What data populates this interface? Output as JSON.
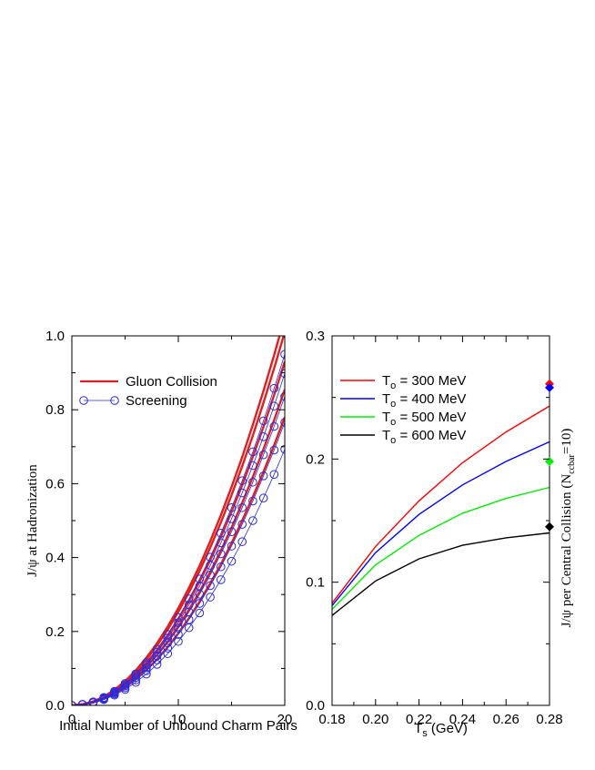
{
  "chart_data": [
    {
      "type": "line",
      "xlabel": "Initial Number of Unbound Charm Pairs",
      "ylabel": "J/ψ at Hadronization",
      "xlim": [
        0,
        20
      ],
      "ylim": [
        0,
        1.0
      ],
      "xticks": [
        0,
        10,
        20
      ],
      "xtick_labels": [
        "0",
        "10",
        "20"
      ],
      "yticks": [
        0,
        0.2,
        0.4,
        0.6,
        0.8,
        1.0
      ],
      "ytick_labels": [
        "0.0",
        "0.2",
        "0.4",
        "0.6",
        "0.8",
        "1.0"
      ],
      "legend_position": "top-left",
      "legend": [
        {
          "name": "Gluon Collision",
          "color": "#e02020",
          "marker": "none"
        },
        {
          "name": "Screening",
          "color": "#2a2ae0",
          "marker": "circle"
        }
      ],
      "x": [
        0,
        1,
        2,
        3,
        4,
        5,
        6,
        7,
        8,
        9,
        10,
        11,
        12,
        13,
        14,
        15,
        16,
        17,
        18,
        19,
        20
      ],
      "series": [
        {
          "name": "Gluon Collision",
          "color": "#e02020",
          "values": [
            0,
            0.003,
            0.0106,
            0.0237,
            0.042,
            0.0657,
            0.0946,
            0.129,
            0.168,
            0.213,
            0.263,
            0.318,
            0.378,
            0.444,
            0.515,
            0.591,
            0.672,
            0.759,
            0.851,
            0.948,
            1.05
          ]
        },
        {
          "name": "Gluon Collision",
          "color": "#e02020",
          "values": [
            0,
            0.0029,
            0.0102,
            0.0227,
            0.0405,
            0.0632,
            0.0911,
            0.124,
            0.162,
            0.205,
            0.253,
            0.306,
            0.364,
            0.427,
            0.495,
            0.569,
            0.647,
            0.73,
            0.819,
            0.912,
            1.01
          ]
        },
        {
          "name": "Gluon Collision",
          "color": "#e02020",
          "values": [
            0,
            0.0026,
            0.0093,
            0.021,
            0.0373,
            0.0582,
            0.0839,
            0.114,
            0.149,
            0.189,
            0.233,
            0.282,
            0.335,
            0.393,
            0.456,
            0.524,
            0.596,
            0.673,
            0.754,
            0.84,
            0.93
          ]
        },
        {
          "name": "Gluon Collision",
          "color": "#e02020",
          "values": [
            0,
            0.0024,
            0.0086,
            0.0193,
            0.0343,
            0.0535,
            0.0771,
            0.105,
            0.137,
            0.173,
            0.214,
            0.259,
            0.308,
            0.361,
            0.419,
            0.481,
            0.548,
            0.618,
            0.693,
            0.772,
            0.855
          ]
        },
        {
          "name": "Gluon Collision",
          "color": "#e02020",
          "values": [
            0,
            0.0022,
            0.0078,
            0.0176,
            0.0313,
            0.0488,
            0.0703,
            0.0957,
            0.125,
            0.158,
            0.195,
            0.236,
            0.281,
            0.33,
            0.382,
            0.439,
            0.5,
            0.564,
            0.632,
            0.704,
            0.78
          ]
        },
        {
          "name": "Screening",
          "color": "#2a2ae0",
          "values": [
            0,
            0.0027,
            0.0095,
            0.0214,
            0.038,
            0.0594,
            0.0855,
            0.116,
            0.152,
            0.192,
            0.238,
            0.288,
            0.342,
            0.401,
            0.466,
            0.535,
            0.608,
            0.686,
            0.77,
            0.858,
            0.95
          ]
        },
        {
          "name": "Screening",
          "color": "#2a2ae0",
          "values": [
            0,
            0.0025,
            0.009,
            0.0202,
            0.0359,
            0.0561,
            0.0808,
            0.11,
            0.144,
            0.182,
            0.224,
            0.272,
            0.323,
            0.379,
            0.44,
            0.505,
            0.575,
            0.649,
            0.727,
            0.81,
            0.898
          ]
        },
        {
          "name": "Screening",
          "color": "#2a2ae0",
          "values": [
            0,
            0.0023,
            0.0084,
            0.0188,
            0.0335,
            0.0523,
            0.0753,
            0.102,
            0.134,
            0.169,
            0.209,
            0.253,
            0.301,
            0.353,
            0.41,
            0.47,
            0.535,
            0.604,
            0.678,
            0.755,
            0.836
          ]
        },
        {
          "name": "Screening",
          "color": "#2a2ae0",
          "values": [
            0,
            0.0021,
            0.0077,
            0.0172,
            0.0306,
            0.0479,
            0.0689,
            0.0938,
            0.123,
            0.155,
            0.192,
            0.232,
            0.276,
            0.324,
            0.375,
            0.431,
            0.49,
            0.553,
            0.621,
            0.691,
            0.766
          ]
        },
        {
          "name": "Screening",
          "color": "#2a2ae0",
          "values": [
            0,
            0.0019,
            0.0069,
            0.0156,
            0.0277,
            0.0433,
            0.0623,
            0.0848,
            0.111,
            0.14,
            0.173,
            0.21,
            0.25,
            0.293,
            0.34,
            0.39,
            0.443,
            0.5,
            0.561,
            0.625,
            0.693
          ]
        }
      ]
    },
    {
      "type": "line",
      "xlabel_main": "T",
      "xlabel_sub": "s",
      "xlabel_rest": " (GeV)",
      "ylabel": "J/ψ per Central Collision (N",
      "ylabel_sub": "ccbar",
      "ylabel_rest": "=10)",
      "xlim": [
        0.18,
        0.28
      ],
      "ylim": [
        0,
        0.3
      ],
      "xticks": [
        0.18,
        0.2,
        0.22,
        0.24,
        0.26,
        0.28
      ],
      "xtick_labels": [
        "0.18",
        "0.20",
        "0.22",
        "0.24",
        "0.26",
        "0.28"
      ],
      "yticks": [
        0,
        0.1,
        0.2,
        0.3
      ],
      "ytick_labels": [
        "0.0",
        "0.1",
        "0.2",
        "0.3"
      ],
      "legend_position": "top-left",
      "x": [
        0.18,
        0.2,
        0.22,
        0.24,
        0.26,
        0.28
      ],
      "series": [
        {
          "name": "T",
          "sub": "o",
          "rest": " = 300 MeV",
          "color": "#ff0000",
          "values": [
            0.083,
            0.129,
            0.166,
            0.197,
            0.222,
            0.243
          ]
        },
        {
          "name": "T",
          "sub": "o",
          "rest": " = 400 MeV",
          "color": "#0000ff",
          "values": [
            0.081,
            0.124,
            0.155,
            0.179,
            0.198,
            0.214
          ]
        },
        {
          "name": "T",
          "sub": "o",
          "rest": " = 500 MeV",
          "color": "#00ee00",
          "values": [
            0.078,
            0.114,
            0.138,
            0.156,
            0.168,
            0.177
          ]
        },
        {
          "name": "T",
          "sub": "o",
          "rest": " = 600 MeV",
          "color": "#000000",
          "values": [
            0.073,
            0.101,
            0.119,
            0.13,
            0.136,
            0.14
          ]
        }
      ],
      "markers": [
        {
          "x": 0.28,
          "y": 0.261,
          "color": "#ff0000"
        },
        {
          "x": 0.28,
          "y": 0.258,
          "color": "#0000ff"
        },
        {
          "x": 0.28,
          "y": 0.198,
          "color": "#00ee00"
        },
        {
          "x": 0.28,
          "y": 0.145,
          "color": "#000000"
        }
      ]
    }
  ]
}
